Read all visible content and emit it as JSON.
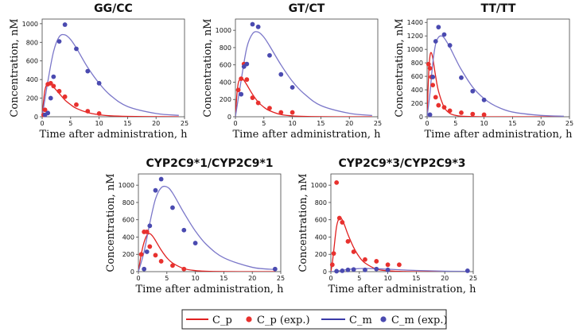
{
  "legend": {
    "entries": [
      {
        "label": "C_p",
        "kind": "line",
        "color": "#e02020"
      },
      {
        "label": "C_p (exp.)",
        "kind": "dot",
        "color": "#e02020"
      },
      {
        "label": "C_m",
        "kind": "line",
        "color": "#3a3aa8"
      },
      {
        "label": "C_m (exp.)",
        "kind": "dot",
        "color": "#4a4ab0"
      }
    ]
  },
  "colors": {
    "cp_line": "#e02020",
    "cp_dot": "#e8312e",
    "cm_line": "#7b77c9",
    "cm_dot": "#4a4ab0"
  },
  "chart_data": [
    {
      "type": "line",
      "title": "GG/CC",
      "xlabel": "Time after administration, h",
      "ylabel": "Concentration, nM",
      "xlim": [
        0,
        25
      ],
      "ylim": [
        0,
        1050
      ],
      "xticks": [
        0,
        5,
        10,
        15,
        20,
        25
      ],
      "yticks": [
        0,
        200,
        400,
        600,
        800,
        1000
      ],
      "series": [
        {
          "name": "C_p",
          "x": [
            0,
            0.25,
            0.5,
            0.75,
            1,
            1.5,
            2,
            3,
            4,
            5,
            6,
            8,
            10,
            12,
            15,
            20,
            24
          ],
          "y": [
            0,
            170,
            290,
            340,
            355,
            350,
            320,
            250,
            180,
            130,
            90,
            45,
            22,
            10,
            4,
            1,
            0
          ]
        },
        {
          "name": "C_p (exp.)",
          "x": [
            0.25,
            0.5,
            1,
            1.5,
            2,
            3,
            4,
            6,
            8,
            10
          ],
          "y": [
            20,
            75,
            350,
            360,
            330,
            275,
            215,
            130,
            60,
            35
          ]
        },
        {
          "name": "C_m",
          "x": [
            0,
            1,
            2,
            3,
            4,
            5,
            6,
            8,
            10,
            12,
            15,
            20,
            24
          ],
          "y": [
            0,
            380,
            700,
            860,
            880,
            830,
            740,
            530,
            360,
            230,
            110,
            35,
            15
          ]
        },
        {
          "name": "C_m (exp.)",
          "x": [
            0.5,
            1,
            1.5,
            2,
            3,
            4,
            6,
            8,
            10
          ],
          "y": [
            20,
            40,
            200,
            430,
            810,
            990,
            730,
            490,
            360
          ]
        }
      ]
    },
    {
      "type": "line",
      "title": "GT/CT",
      "xlabel": "Time after administration, h",
      "ylabel": "Concentration, nM",
      "xlim": [
        0,
        25
      ],
      "ylim": [
        0,
        1130
      ],
      "xticks": [
        0,
        5,
        10,
        15,
        20,
        25
      ],
      "yticks": [
        0,
        200,
        400,
        600,
        800,
        1000
      ],
      "series": [
        {
          "name": "C_p",
          "x": [
            0,
            0.25,
            0.5,
            0.75,
            1,
            1.25,
            1.5,
            2,
            3,
            4,
            5,
            6,
            8,
            10,
            12,
            15,
            20,
            24
          ],
          "y": [
            0,
            250,
            390,
            430,
            450,
            440,
            420,
            370,
            260,
            170,
            110,
            70,
            25,
            10,
            4,
            1,
            0,
            0
          ]
        },
        {
          "name": "C_p (exp.)",
          "x": [
            0.5,
            1,
            1.5,
            2,
            3,
            4,
            6,
            8,
            10
          ],
          "y": [
            310,
            440,
            610,
            430,
            220,
            160,
            100,
            50,
            50
          ]
        },
        {
          "name": "C_m",
          "x": [
            0,
            1,
            2,
            3,
            4,
            5,
            6,
            8,
            10,
            12,
            15,
            20,
            24
          ],
          "y": [
            0,
            420,
            800,
            960,
            980,
            920,
            820,
            600,
            410,
            270,
            130,
            40,
            15
          ]
        },
        {
          "name": "C_m (exp.)",
          "x": [
            1,
            1.5,
            2,
            3,
            4,
            6,
            8,
            10
          ],
          "y": [
            260,
            580,
            610,
            1070,
            1040,
            710,
            490,
            340
          ]
        }
      ]
    },
    {
      "type": "line",
      "title": "TT/TT",
      "xlabel": "Time after administration, h",
      "ylabel": "Concentration, nM",
      "xlim": [
        0,
        25
      ],
      "ylim": [
        0,
        1450
      ],
      "xticks": [
        0,
        5,
        10,
        15,
        20,
        25
      ],
      "yticks": [
        0,
        200,
        400,
        600,
        800,
        1000,
        1200,
        1400
      ],
      "series": [
        {
          "name": "C_p",
          "x": [
            0,
            0.25,
            0.5,
            0.75,
            1,
            1.5,
            2,
            3,
            4,
            5,
            6,
            8,
            10,
            12,
            15,
            20,
            24
          ],
          "y": [
            0,
            600,
            900,
            950,
            870,
            600,
            380,
            140,
            50,
            20,
            8,
            2,
            0,
            0,
            0,
            0,
            0
          ]
        },
        {
          "name": "C_p (exp.)",
          "x": [
            0.25,
            0.5,
            0.75,
            1,
            1.5,
            2,
            3,
            4,
            6,
            8,
            10
          ],
          "y": [
            780,
            720,
            590,
            470,
            290,
            170,
            140,
            90,
            60,
            40,
            30
          ]
        },
        {
          "name": "C_m",
          "x": [
            0,
            0.5,
            1,
            1.5,
            2,
            2.5,
            3,
            4,
            5,
            6,
            8,
            10,
            12,
            15,
            20,
            24
          ],
          "y": [
            0,
            350,
            800,
            1080,
            1180,
            1200,
            1170,
            1030,
            860,
            700,
            440,
            270,
            160,
            70,
            20,
            8
          ]
        },
        {
          "name": "C_m (exp.)",
          "x": [
            0.5,
            1,
            1.5,
            2,
            3,
            4,
            6,
            8,
            10
          ],
          "y": [
            30,
            590,
            1120,
            1330,
            1220,
            1060,
            580,
            380,
            250
          ]
        }
      ]
    },
    {
      "type": "line",
      "title": "CYP2C9*1/CYP2C9*1",
      "xlabel": "Time after administration, h",
      "ylabel": "Concentration, nM",
      "xlim": [
        0,
        25
      ],
      "ylim": [
        0,
        1130
      ],
      "xticks": [
        0,
        5,
        10,
        15,
        20,
        25
      ],
      "yticks": [
        0,
        200,
        400,
        600,
        800,
        1000
      ],
      "series": [
        {
          "name": "C_p",
          "x": [
            0,
            0.5,
            1,
            1.5,
            2,
            2.5,
            3,
            4,
            5,
            6,
            8,
            10,
            12,
            15,
            20,
            24
          ],
          "y": [
            0,
            200,
            340,
            420,
            440,
            410,
            360,
            250,
            160,
            100,
            35,
            12,
            4,
            1,
            0,
            0
          ]
        },
        {
          "name": "C_p (exp.)",
          "x": [
            0.5,
            1,
            1.5,
            2,
            3,
            4,
            6,
            8
          ],
          "y": [
            200,
            460,
            460,
            290,
            190,
            120,
            70,
            30
          ]
        },
        {
          "name": "C_m",
          "x": [
            0,
            1,
            2,
            3,
            4,
            5,
            6,
            8,
            10,
            12,
            15,
            20,
            24
          ],
          "y": [
            0,
            230,
            560,
            840,
            970,
            980,
            910,
            680,
            470,
            310,
            160,
            50,
            25
          ]
        },
        {
          "name": "C_m (exp.)",
          "x": [
            1,
            1.5,
            2,
            3,
            4,
            6,
            8,
            10,
            24
          ],
          "y": [
            30,
            230,
            530,
            940,
            1070,
            740,
            480,
            330,
            30
          ]
        }
      ]
    },
    {
      "type": "line",
      "title": "CYP2C9*3/CYP2C9*3",
      "xlabel": "Time after administration, h",
      "ylabel": "Concentration, nM",
      "xlim": [
        0,
        25
      ],
      "ylim": [
        0,
        1130
      ],
      "xticks": [
        0,
        5,
        10,
        15,
        20,
        25
      ],
      "yticks": [
        0,
        200,
        400,
        600,
        800,
        1000
      ],
      "series": [
        {
          "name": "C_p",
          "x": [
            0,
            0.25,
            0.5,
            1,
            1.5,
            2,
            2.5,
            3,
            4,
            5,
            6,
            8,
            10,
            12,
            15,
            20,
            24
          ],
          "y": [
            0,
            100,
            240,
            520,
            620,
            600,
            520,
            430,
            280,
            170,
            100,
            30,
            10,
            3,
            0,
            0,
            0
          ]
        },
        {
          "name": "C_p (exp.)",
          "x": [
            0.25,
            0.5,
            1,
            1.5,
            2,
            3,
            4,
            6,
            8,
            10,
            12
          ],
          "y": [
            80,
            210,
            1030,
            620,
            570,
            350,
            230,
            140,
            120,
            80,
            80
          ]
        },
        {
          "name": "C_m",
          "x": [
            0,
            1,
            2,
            3,
            4,
            5,
            6,
            8,
            10,
            12,
            15,
            20,
            24
          ],
          "y": [
            0,
            5,
            15,
            25,
            32,
            35,
            36,
            34,
            28,
            22,
            14,
            6,
            3
          ]
        },
        {
          "name": "C_m (exp.)",
          "x": [
            1,
            2,
            3,
            4,
            6,
            8,
            10,
            24
          ],
          "y": [
            5,
            10,
            20,
            25,
            20,
            30,
            20,
            10
          ]
        }
      ]
    }
  ]
}
